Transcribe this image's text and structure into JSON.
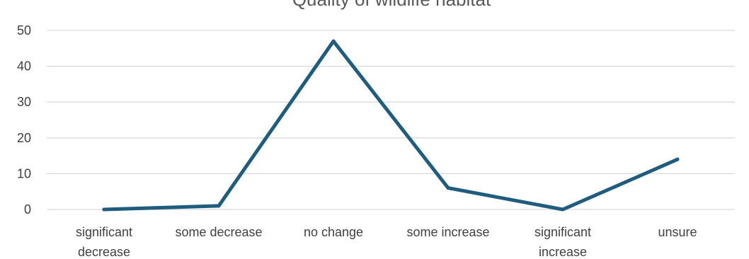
{
  "chart_data": {
    "type": "line",
    "title": "Quality of wildlife habitat",
    "xlabel": "",
    "ylabel": "",
    "categories": [
      [
        "significant",
        "decrease"
      ],
      [
        "some decrease"
      ],
      [
        "no change"
      ],
      [
        "some increase"
      ],
      [
        "significant",
        "increase"
      ],
      [
        "unsure"
      ]
    ],
    "series": [
      {
        "values": [
          0,
          1,
          47,
          6,
          0,
          14
        ]
      }
    ],
    "ylim": [
      0,
      50
    ],
    "yticks": [
      "0",
      "10",
      "20",
      "30",
      "40",
      "50"
    ],
    "grid": true,
    "legend": "none",
    "colors": {
      "line": "#1F5C7E",
      "grid": "#D9D9D9",
      "text": "#404040",
      "title": "#595959"
    }
  }
}
